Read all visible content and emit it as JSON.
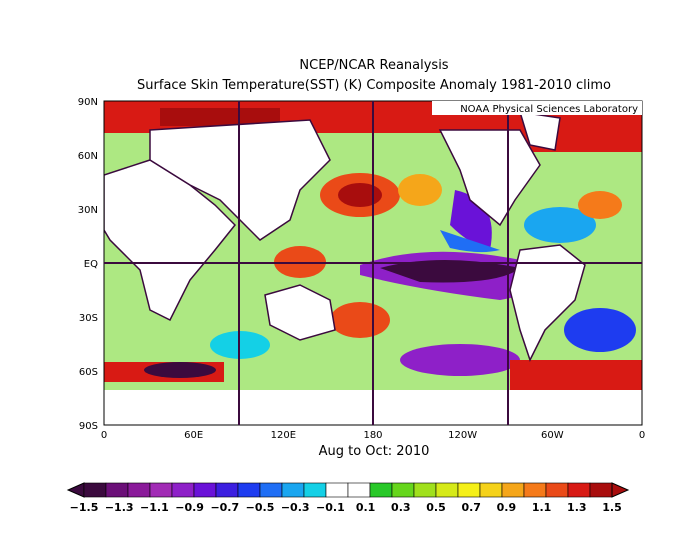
{
  "title": {
    "line1": "NCEP/NCAR Reanalysis",
    "line2": "Surface Skin Temperature(SST) (K) Composite Anomaly 1981-2010 climo"
  },
  "credit": "NOAA Physical Sciences Laboratory",
  "date_label": "Aug to Oct: 2010",
  "axes": {
    "lat_ticks": [
      "90N",
      "60N",
      "30N",
      "EQ",
      "30S",
      "60S",
      "90S"
    ],
    "lon_ticks": [
      "0",
      "60E",
      "120E",
      "180",
      "120W",
      "60W",
      "0"
    ]
  },
  "colorbar": {
    "labels": [
      "-1.5",
      "-1.3",
      "-1.1",
      "-0.9",
      "-0.7",
      "-0.5",
      "-0.3",
      "-0.1",
      "0.1",
      "0.3",
      "0.5",
      "0.7",
      "0.9",
      "1.1",
      "1.3",
      "1.5"
    ],
    "colors": [
      "#3b0a3e",
      "#6b0f78",
      "#8a1a9a",
      "#a12bb5",
      "#8e20c8",
      "#6a12d8",
      "#3c1fe0",
      "#1e3cf0",
      "#1f6ef5",
      "#1aa6f0",
      "#14d0e6",
      "#ffffff",
      "#ffffff",
      "#28c828",
      "#66d61c",
      "#a0e01c",
      "#d6ea18",
      "#f5f018",
      "#f5d21a",
      "#f5a61a",
      "#f57a1a",
      "#ea4a18",
      "#d81a14",
      "#a80d0d"
    ]
  }
}
